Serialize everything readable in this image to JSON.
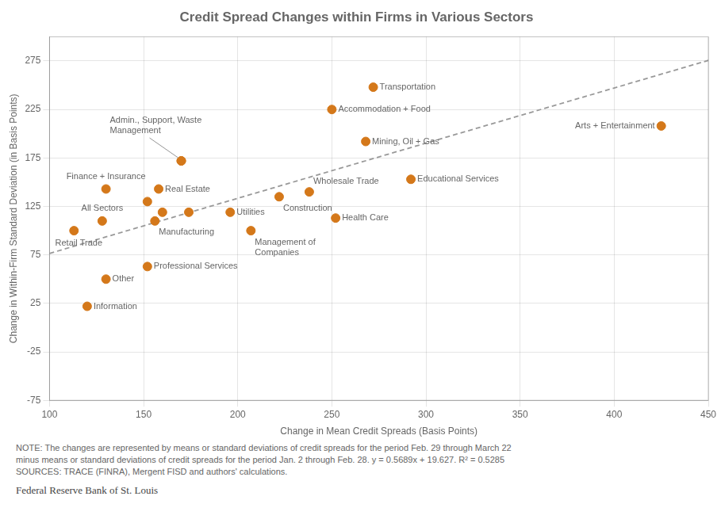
{
  "chart_data": {
    "type": "scatter",
    "title": "Credit Spread Changes within Firms in Various Sectors",
    "x_label": "Change in Mean Credit Spreads (Basis Points)",
    "y_label": "Change in Within-Firm Standard Deviation (in Basis Points)",
    "xlim": [
      100,
      450
    ],
    "ylim": [
      -75,
      300
    ],
    "xticks": [
      100,
      150,
      200,
      250,
      300,
      350,
      400,
      450
    ],
    "yticks": [
      -75,
      -25,
      25,
      75,
      125,
      175,
      225,
      275
    ],
    "grid": true,
    "series": [
      {
        "type": "scatter",
        "color": "#D4781A",
        "x": [
          272,
          250,
          268,
          425,
          292,
          113,
          152,
          130,
          120,
          158,
          170,
          152,
          160,
          174,
          156,
          196,
          207,
          222,
          238,
          252,
          128,
          130,
          170
        ],
        "values": [
          248,
          225,
          192,
          208,
          153,
          100,
          63,
          50,
          22,
          143,
          172,
          130,
          119,
          119,
          110,
          119,
          100,
          135,
          140,
          113,
          110,
          143,
          172
        ],
        "point_labels": [
          "Transportation",
          "Accommodation + Food",
          "Mining, Oil + Gas",
          "Arts + Entertainment",
          "Educational Services",
          "Retail Trade",
          "Professional Services",
          "Other",
          "Information",
          "Real Estate",
          null,
          null,
          null,
          null,
          "Manufacturing",
          "Utilities",
          "Management of\nCompanies",
          "Construction",
          "Wholesale Trade",
          "Health Care",
          "All Sectors",
          "Finance + Insurance",
          "Admin., Support, Waste\nManagement"
        ]
      },
      {
        "type": "line",
        "line_style": "dashed",
        "color": "#999999",
        "x": [
          100,
          450
        ],
        "values": [
          76.517,
          275.632
        ]
      }
    ],
    "annotations": [
      "NOTE: The changes are represented by means or standard deviations of credit spreads for the period Feb. 29 through March 22",
      "minus means or standard deviations of credit spreads for the period Jan. 2 through Feb. 28. y = 0.5689x + 19.627. R² = 0.5285",
      "SOURCES: TRACE (FINRA), Mergent FISD and authors' calculations."
    ],
    "footer": "Federal Reserve Bank of St. Louis"
  }
}
